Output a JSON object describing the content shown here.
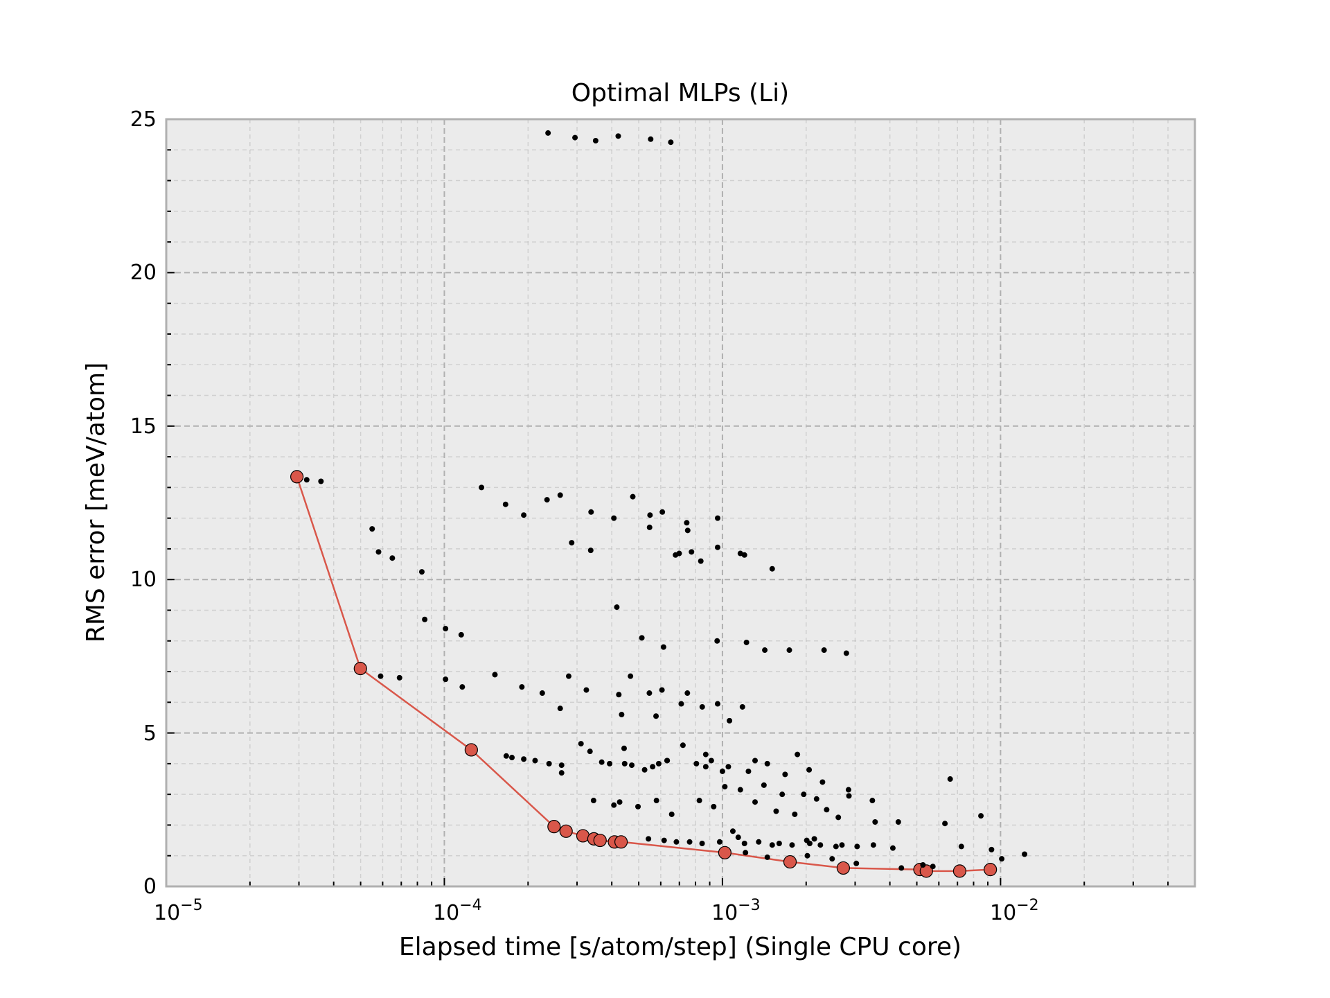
{
  "chart_data": {
    "type": "scatter",
    "title": "Optimal MLPs (Li)",
    "xlabel": "Elapsed time [s/atom/step] (Single CPU core)",
    "ylabel": "RMS error [meV/atom]",
    "xscale": "log",
    "xlim": [
      1e-05,
      0.05
    ],
    "ylim": [
      0,
      25
    ],
    "grid": true,
    "x_ticks": [
      {
        "base": "10",
        "exp": "−5"
      },
      {
        "base": "10",
        "exp": "−4"
      },
      {
        "base": "10",
        "exp": "−3"
      },
      {
        "base": "10",
        "exp": "−2"
      }
    ],
    "y_ticks": [
      "0",
      "5",
      "10",
      "15",
      "20",
      "25"
    ],
    "colors": {
      "background": "#ebebeb",
      "frame": "#b0b0b0",
      "grid": "#b0b0b0",
      "points": "#000000",
      "pareto": "#d9574a"
    },
    "series": [
      {
        "style": "scatter",
        "points": [
          [
            0.000236,
            24.55
          ],
          [
            0.000295,
            24.4
          ],
          [
            0.00035,
            24.3
          ],
          [
            0.000422,
            24.45
          ],
          [
            0.000552,
            24.35
          ],
          [
            0.000652,
            24.25
          ],
          [
            3.2e-05,
            13.25
          ],
          [
            3.6e-05,
            13.2
          ],
          [
            5.5e-05,
            11.65
          ],
          [
            5.8e-05,
            10.9
          ],
          [
            6.5e-05,
            10.7
          ],
          [
            8.3e-05,
            10.25
          ],
          [
            8.5e-05,
            8.7
          ],
          [
            0.000101,
            8.4
          ],
          [
            0.000115,
            8.2
          ],
          [
            0.000101,
            6.75
          ],
          [
            0.000116,
            6.5
          ],
          [
            0.000136,
            13.0
          ],
          [
            0.000166,
            12.45
          ],
          [
            0.000193,
            12.1
          ],
          [
            0.000234,
            12.6
          ],
          [
            0.000261,
            12.75
          ],
          [
            0.000337,
            12.2
          ],
          [
            0.000407,
            12.0
          ],
          [
            0.000476,
            12.7
          ],
          [
            0.000549,
            12.1
          ],
          [
            0.000608,
            12.2
          ],
          [
            0.000547,
            11.7
          ],
          [
            0.000744,
            11.85
          ],
          [
            0.00075,
            11.6
          ],
          [
            0.000961,
            12.0
          ],
          [
            0.000287,
            11.2
          ],
          [
            0.000336,
            10.95
          ],
          [
            0.000699,
            10.85
          ],
          [
            0.000774,
            10.9
          ],
          [
            0.000678,
            10.8
          ],
          [
            0.000836,
            10.6
          ],
          [
            0.000961,
            11.05
          ],
          [
            0.00116,
            10.85
          ],
          [
            0.0012,
            10.8
          ],
          [
            0.00151,
            10.35
          ],
          [
            0.000417,
            9.1
          ],
          [
            0.000513,
            8.1
          ],
          [
            0.000614,
            7.8
          ],
          [
            0.000957,
            8.0
          ],
          [
            0.00122,
            7.95
          ],
          [
            0.00142,
            7.7
          ],
          [
            0.00174,
            7.7
          ],
          [
            0.00232,
            7.7
          ],
          [
            0.00279,
            7.6
          ],
          [
            5.9e-05,
            6.85
          ],
          [
            6.9e-05,
            6.8
          ],
          [
            0.000152,
            6.9
          ],
          [
            0.00019,
            6.5
          ],
          [
            0.000225,
            6.3
          ],
          [
            0.00028,
            6.85
          ],
          [
            0.000324,
            6.4
          ],
          [
            0.000424,
            6.25
          ],
          [
            0.000467,
            6.85
          ],
          [
            0.000546,
            6.3
          ],
          [
            0.000606,
            6.4
          ],
          [
            0.000711,
            5.95
          ],
          [
            0.000748,
            6.3
          ],
          [
            0.000846,
            5.85
          ],
          [
            0.000961,
            5.95
          ],
          [
            0.00118,
            5.85
          ],
          [
            0.000261,
            5.8
          ],
          [
            0.000434,
            5.6
          ],
          [
            0.000577,
            5.55
          ],
          [
            0.00106,
            5.4
          ],
          [
            0.000167,
            4.25
          ],
          [
            0.000175,
            4.2
          ],
          [
            0.000193,
            4.15
          ],
          [
            0.000212,
            4.1
          ],
          [
            0.000238,
            4.0
          ],
          [
            0.000264,
            3.95
          ],
          [
            0.00031,
            4.65
          ],
          [
            0.000368,
            4.05
          ],
          [
            0.000393,
            4.0
          ],
          [
            0.000445,
            4.0
          ],
          [
            0.000472,
            3.95
          ],
          [
            0.000525,
            3.8
          ],
          [
            0.000561,
            3.9
          ],
          [
            0.00059,
            4.0
          ],
          [
            0.000632,
            4.1
          ],
          [
            0.000721,
            4.6
          ],
          [
            0.000806,
            4.0
          ],
          [
            0.000871,
            4.3
          ],
          [
            0.000912,
            4.1
          ],
          [
            0.001,
            3.75
          ],
          [
            0.00105,
            3.9
          ],
          [
            0.00124,
            3.75
          ],
          [
            0.00131,
            4.1
          ],
          [
            0.00145,
            4.0
          ],
          [
            0.00168,
            3.65
          ],
          [
            0.00186,
            4.3
          ],
          [
            0.00205,
            3.8
          ],
          [
            0.00229,
            3.4
          ],
          [
            0.000264,
            3.7
          ],
          [
            0.000334,
            4.4
          ],
          [
            0.000443,
            4.5
          ],
          [
            0.000633,
            4.1
          ],
          [
            0.000871,
            3.9
          ],
          [
            0.00102,
            3.25
          ],
          [
            0.00116,
            3.15
          ],
          [
            0.00141,
            3.3
          ],
          [
            0.00164,
            3.0
          ],
          [
            0.00196,
            3.0
          ],
          [
            0.00237,
            2.5
          ],
          [
            0.00284,
            3.15
          ],
          [
            0.00346,
            2.8
          ],
          [
            0.00285,
            2.95
          ],
          [
            0.00659,
            3.5
          ],
          [
            0.000344,
            2.8
          ],
          [
            0.000407,
            2.65
          ],
          [
            0.000427,
            2.75
          ],
          [
            0.000497,
            2.6
          ],
          [
            0.000579,
            2.8
          ],
          [
            0.000657,
            2.35
          ],
          [
            0.000826,
            2.8
          ],
          [
            0.00093,
            2.6
          ],
          [
            0.00131,
            2.75
          ],
          [
            0.00156,
            2.45
          ],
          [
            0.00182,
            2.35
          ],
          [
            0.00218,
            2.85
          ],
          [
            0.00261,
            2.25
          ],
          [
            0.00354,
            2.1
          ],
          [
            0.00429,
            2.1
          ],
          [
            0.00631,
            2.05
          ],
          [
            0.0085,
            2.3
          ],
          [
            0.000542,
            1.55
          ],
          [
            0.000617,
            1.5
          ],
          [
            0.000683,
            1.45
          ],
          [
            0.000762,
            1.45
          ],
          [
            0.000845,
            1.4
          ],
          [
            0.000977,
            1.45
          ],
          [
            0.00109,
            1.8
          ],
          [
            0.00114,
            1.6
          ],
          [
            0.0012,
            1.4
          ],
          [
            0.00135,
            1.45
          ],
          [
            0.00151,
            1.35
          ],
          [
            0.0016,
            1.4
          ],
          [
            0.00178,
            1.35
          ],
          [
            0.00201,
            1.5
          ],
          [
            0.00206,
            1.4
          ],
          [
            0.00214,
            1.55
          ],
          [
            0.00225,
            1.35
          ],
          [
            0.00256,
            1.3
          ],
          [
            0.00269,
            1.35
          ],
          [
            0.00305,
            1.3
          ],
          [
            0.00349,
            1.35
          ],
          [
            0.0041,
            1.25
          ],
          [
            0.00723,
            1.3
          ],
          [
            0.00928,
            1.2
          ],
          [
            0.00121,
            1.1
          ],
          [
            0.00145,
            0.95
          ],
          [
            0.00202,
            1.0
          ],
          [
            0.00248,
            0.9
          ],
          [
            0.00303,
            0.75
          ],
          [
            0.0044,
            0.6
          ],
          [
            0.00526,
            0.7
          ],
          [
            0.00571,
            0.65
          ],
          [
            0.0101,
            0.9
          ],
          [
            0.0122,
            1.05
          ]
        ]
      },
      {
        "style": "line-marker",
        "points": [
          [
            2.95e-05,
            13.35
          ],
          [
            4.99e-05,
            7.1
          ],
          [
            0.000125,
            4.45
          ],
          [
            0.000248,
            1.95
          ],
          [
            0.000274,
            1.8
          ],
          [
            0.000315,
            1.65
          ],
          [
            0.000345,
            1.55
          ],
          [
            0.000363,
            1.5
          ],
          [
            0.000409,
            1.45
          ],
          [
            0.000432,
            1.45
          ],
          [
            0.00102,
            1.1
          ],
          [
            0.00175,
            0.8
          ],
          [
            0.00272,
            0.6
          ],
          [
            0.00513,
            0.55
          ],
          [
            0.00541,
            0.5
          ],
          [
            0.00713,
            0.5
          ],
          [
            0.00919,
            0.55
          ]
        ]
      }
    ]
  }
}
